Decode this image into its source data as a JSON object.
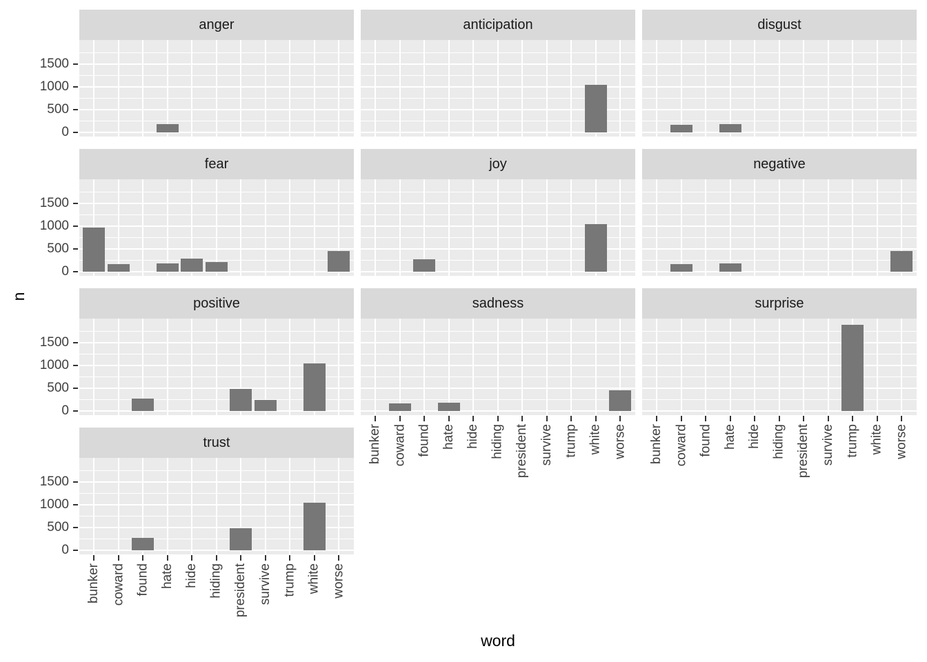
{
  "chart_data": {
    "type": "bar",
    "title": "",
    "xlabel": "word",
    "ylabel": "n",
    "grid": true,
    "legend_position": "none",
    "bar_color": "#777777",
    "panel_bg": "#ebebeb",
    "strip_bg": "#d9d9d9",
    "categories": [
      "bunker",
      "coward",
      "found",
      "hate",
      "hide",
      "hiding",
      "president",
      "survive",
      "trump",
      "white",
      "worse"
    ],
    "y_ticks": [
      0,
      500,
      1000,
      1500
    ],
    "ylim": [
      0,
      2000
    ],
    "facets": [
      {
        "label": "anger",
        "values": {
          "hate": 180
        }
      },
      {
        "label": "anticipation",
        "values": {
          "white": 1050
        }
      },
      {
        "label": "disgust",
        "values": {
          "coward": 170,
          "hate": 180
        }
      },
      {
        "label": "fear",
        "values": {
          "bunker": 975,
          "coward": 170,
          "hate": 180,
          "hide": 285,
          "hiding": 215,
          "worse": 460
        }
      },
      {
        "label": "joy",
        "values": {
          "found": 270,
          "white": 1050
        }
      },
      {
        "label": "negative",
        "values": {
          "coward": 170,
          "hate": 180,
          "worse": 460
        }
      },
      {
        "label": "positive",
        "values": {
          "found": 270,
          "president": 480,
          "survive": 250,
          "white": 1050
        }
      },
      {
        "label": "sadness",
        "values": {
          "coward": 170,
          "hate": 180,
          "worse": 460
        }
      },
      {
        "label": "surprise",
        "values": {
          "trump": 1900
        }
      },
      {
        "label": "trust",
        "values": {
          "found": 270,
          "president": 480,
          "white": 1050
        }
      }
    ]
  }
}
